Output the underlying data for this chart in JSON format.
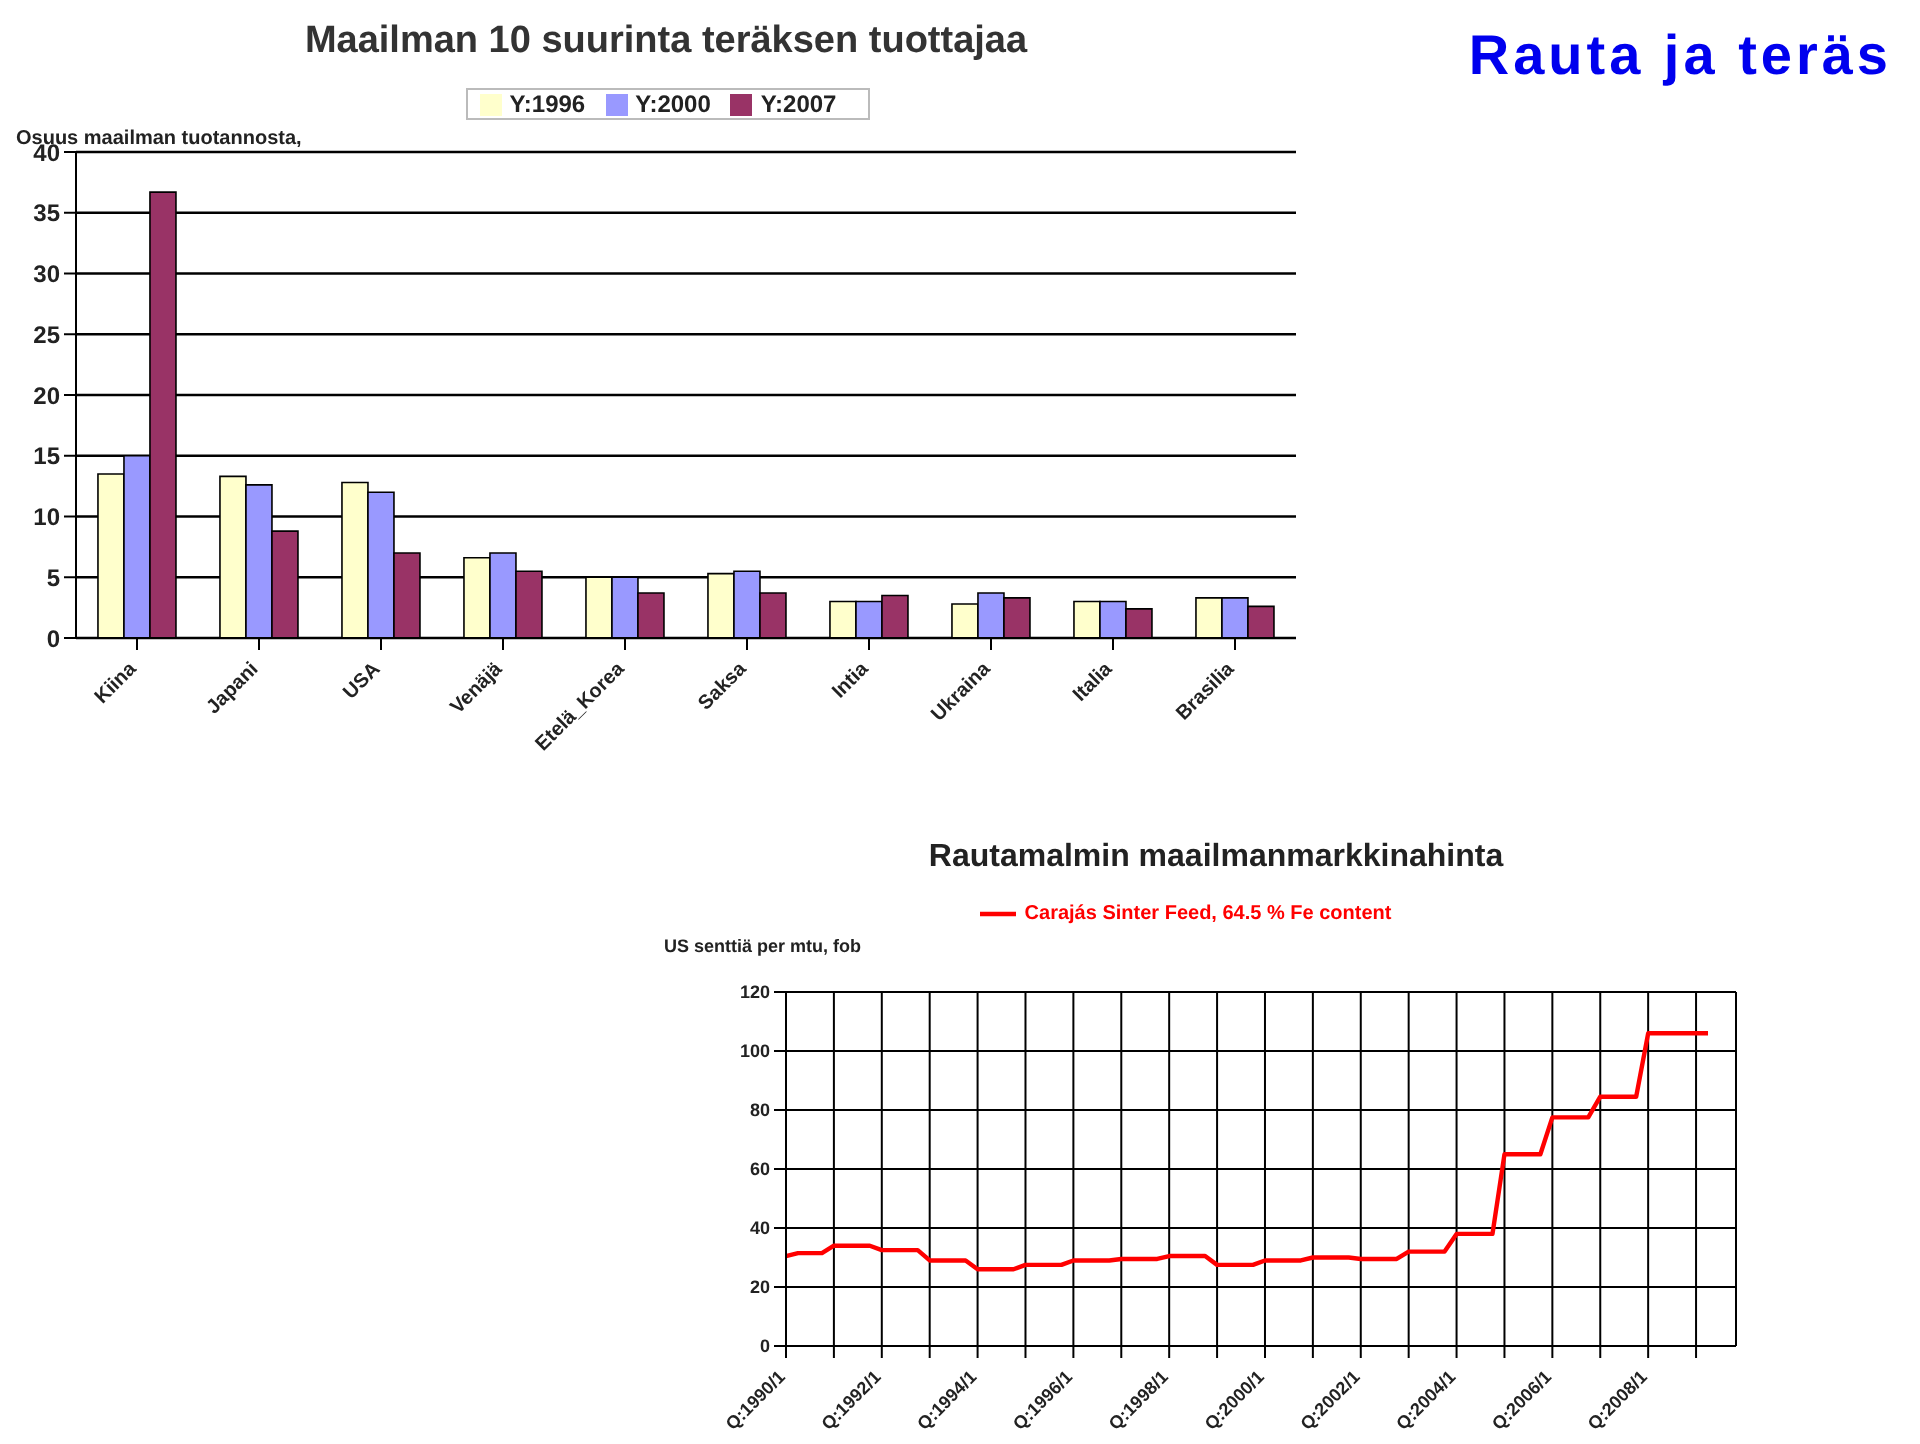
{
  "chart_data": [
    {
      "type": "bar",
      "title": "Maailman 10 suurinta teräksen tuottajaa",
      "ylabel": "Osuus maailman tuotannosta,",
      "annotations": [
        "Rauta ja teräs"
      ],
      "categories": [
        "Kiina",
        "Japani",
        "USA",
        "Venäjä",
        "Etelä_Korea",
        "Saksa",
        "Intia",
        "Ukraina",
        "Italia",
        "Brasilia"
      ],
      "series": [
        {
          "name": "Y:1996",
          "color": "#ffffcc",
          "values": [
            13.5,
            13.3,
            12.8,
            6.6,
            5,
            5.3,
            3,
            2.8,
            3,
            3.3
          ]
        },
        {
          "name": "Y:2000",
          "color": "#9999ff",
          "values": [
            15,
            12.6,
            12,
            7,
            5,
            5.5,
            3,
            3.7,
            3,
            3.3
          ]
        },
        {
          "name": "Y:2007",
          "color": "#993366",
          "values": [
            36.7,
            8.8,
            7,
            5.5,
            3.7,
            3.7,
            3.5,
            3.3,
            2.4,
            2.6
          ]
        }
      ],
      "ylim": [
        0,
        40
      ],
      "yticks": [
        0,
        5,
        10,
        15,
        20,
        25,
        30,
        35,
        40
      ],
      "grid": "y",
      "legend": "top"
    },
    {
      "type": "line",
      "title": "Rautamalmin maailmanmarkkinahinta",
      "ylabel": "US senttiä per mtu, fob",
      "categories": [
        "Q:1990/1",
        null,
        null,
        null,
        null,
        null,
        null,
        null,
        "Q:1992/1",
        null,
        null,
        null,
        null,
        null,
        null,
        null,
        "Q:1994/1",
        null,
        null,
        null,
        null,
        null,
        null,
        null,
        "Q:1996/1",
        null,
        null,
        null,
        null,
        null,
        null,
        null,
        "Q:1998/1",
        null,
        null,
        null,
        null,
        null,
        null,
        null,
        "Q:2000/1",
        null,
        null,
        null,
        null,
        null,
        null,
        null,
        "Q:2002/1",
        null,
        null,
        null,
        null,
        null,
        null,
        null,
        "Q:2004/1",
        null,
        null,
        null,
        null,
        null,
        null,
        null,
        "Q:2006/1",
        null,
        null,
        null,
        null,
        null,
        null,
        null,
        "Q:2008/1",
        null,
        null,
        null,
        null,
        null,
        null
      ],
      "series": [
        {
          "name": "Carajás Sinter Feed, 64.5 % Fe content",
          "color": "#ff0000",
          "values": [
            30.5,
            31.5,
            31.5,
            31.5,
            34,
            34,
            34,
            34,
            32.5,
            32.5,
            32.5,
            32.5,
            29,
            29,
            29,
            29,
            26,
            26,
            26,
            26,
            27.5,
            27.5,
            27.5,
            27.5,
            29,
            29,
            29,
            29,
            29.5,
            29.5,
            29.5,
            29.5,
            30.5,
            30.5,
            30.5,
            30.5,
            27.5,
            27.5,
            27.5,
            27.5,
            29,
            29,
            29,
            29,
            30,
            30,
            30,
            30,
            29.5,
            29.5,
            29.5,
            29.5,
            32,
            32,
            32,
            32,
            38,
            38,
            38,
            38,
            65,
            65,
            65,
            65,
            77.5,
            77.5,
            77.5,
            77.5,
            84.5,
            84.5,
            84.5,
            84.5,
            106,
            106,
            106,
            106,
            106,
            106,
            null
          ]
        }
      ],
      "ylim": [
        0,
        120
      ],
      "yticks": [
        0,
        20,
        40,
        60,
        80,
        100,
        120
      ],
      "grid": true,
      "legend": "top",
      "marker": "none",
      "line_style": "solid"
    }
  ]
}
